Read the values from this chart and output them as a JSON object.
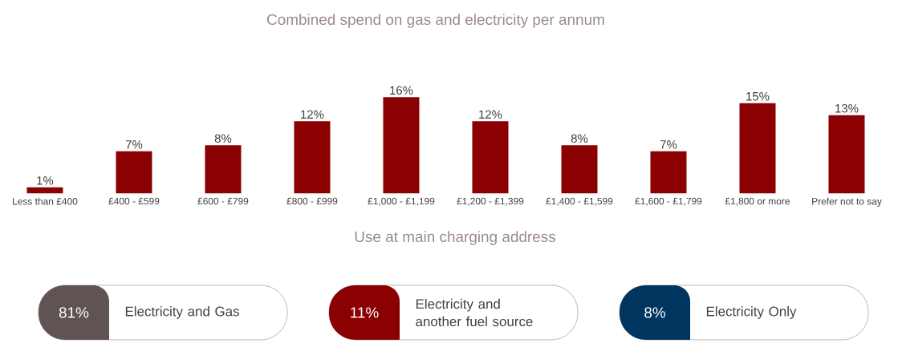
{
  "chart_data": [
    {
      "type": "bar",
      "title": "Combined spend on gas and electricity per annum",
      "categories": [
        "Less than £400",
        "£400 - £599",
        "£600 - £799",
        "£800 - £999",
        "£1,000 - £1,199",
        "£1,200 - £1,399",
        "£1,400 - £1,599",
        "£1,600 - £1,799",
        "£1,800 or more",
        "Prefer not to say"
      ],
      "values": [
        1,
        7,
        8,
        12,
        16,
        12,
        8,
        7,
        15,
        13
      ],
      "value_labels": [
        "1%",
        "7%",
        "8%",
        "12%",
        "16%",
        "12%",
        "8%",
        "7%",
        "15%",
        "13%"
      ],
      "color": "#8b0000"
    },
    {
      "type": "other",
      "title": "Use at main charging address",
      "categories": [
        "Electricity and Gas",
        "Electricity and another fuel source",
        "Electricity Only"
      ],
      "value_labels": [
        "81%",
        "11%",
        "8%"
      ],
      "colors": [
        "#5f5453",
        "#8b0000",
        "#003560"
      ]
    }
  ]
}
